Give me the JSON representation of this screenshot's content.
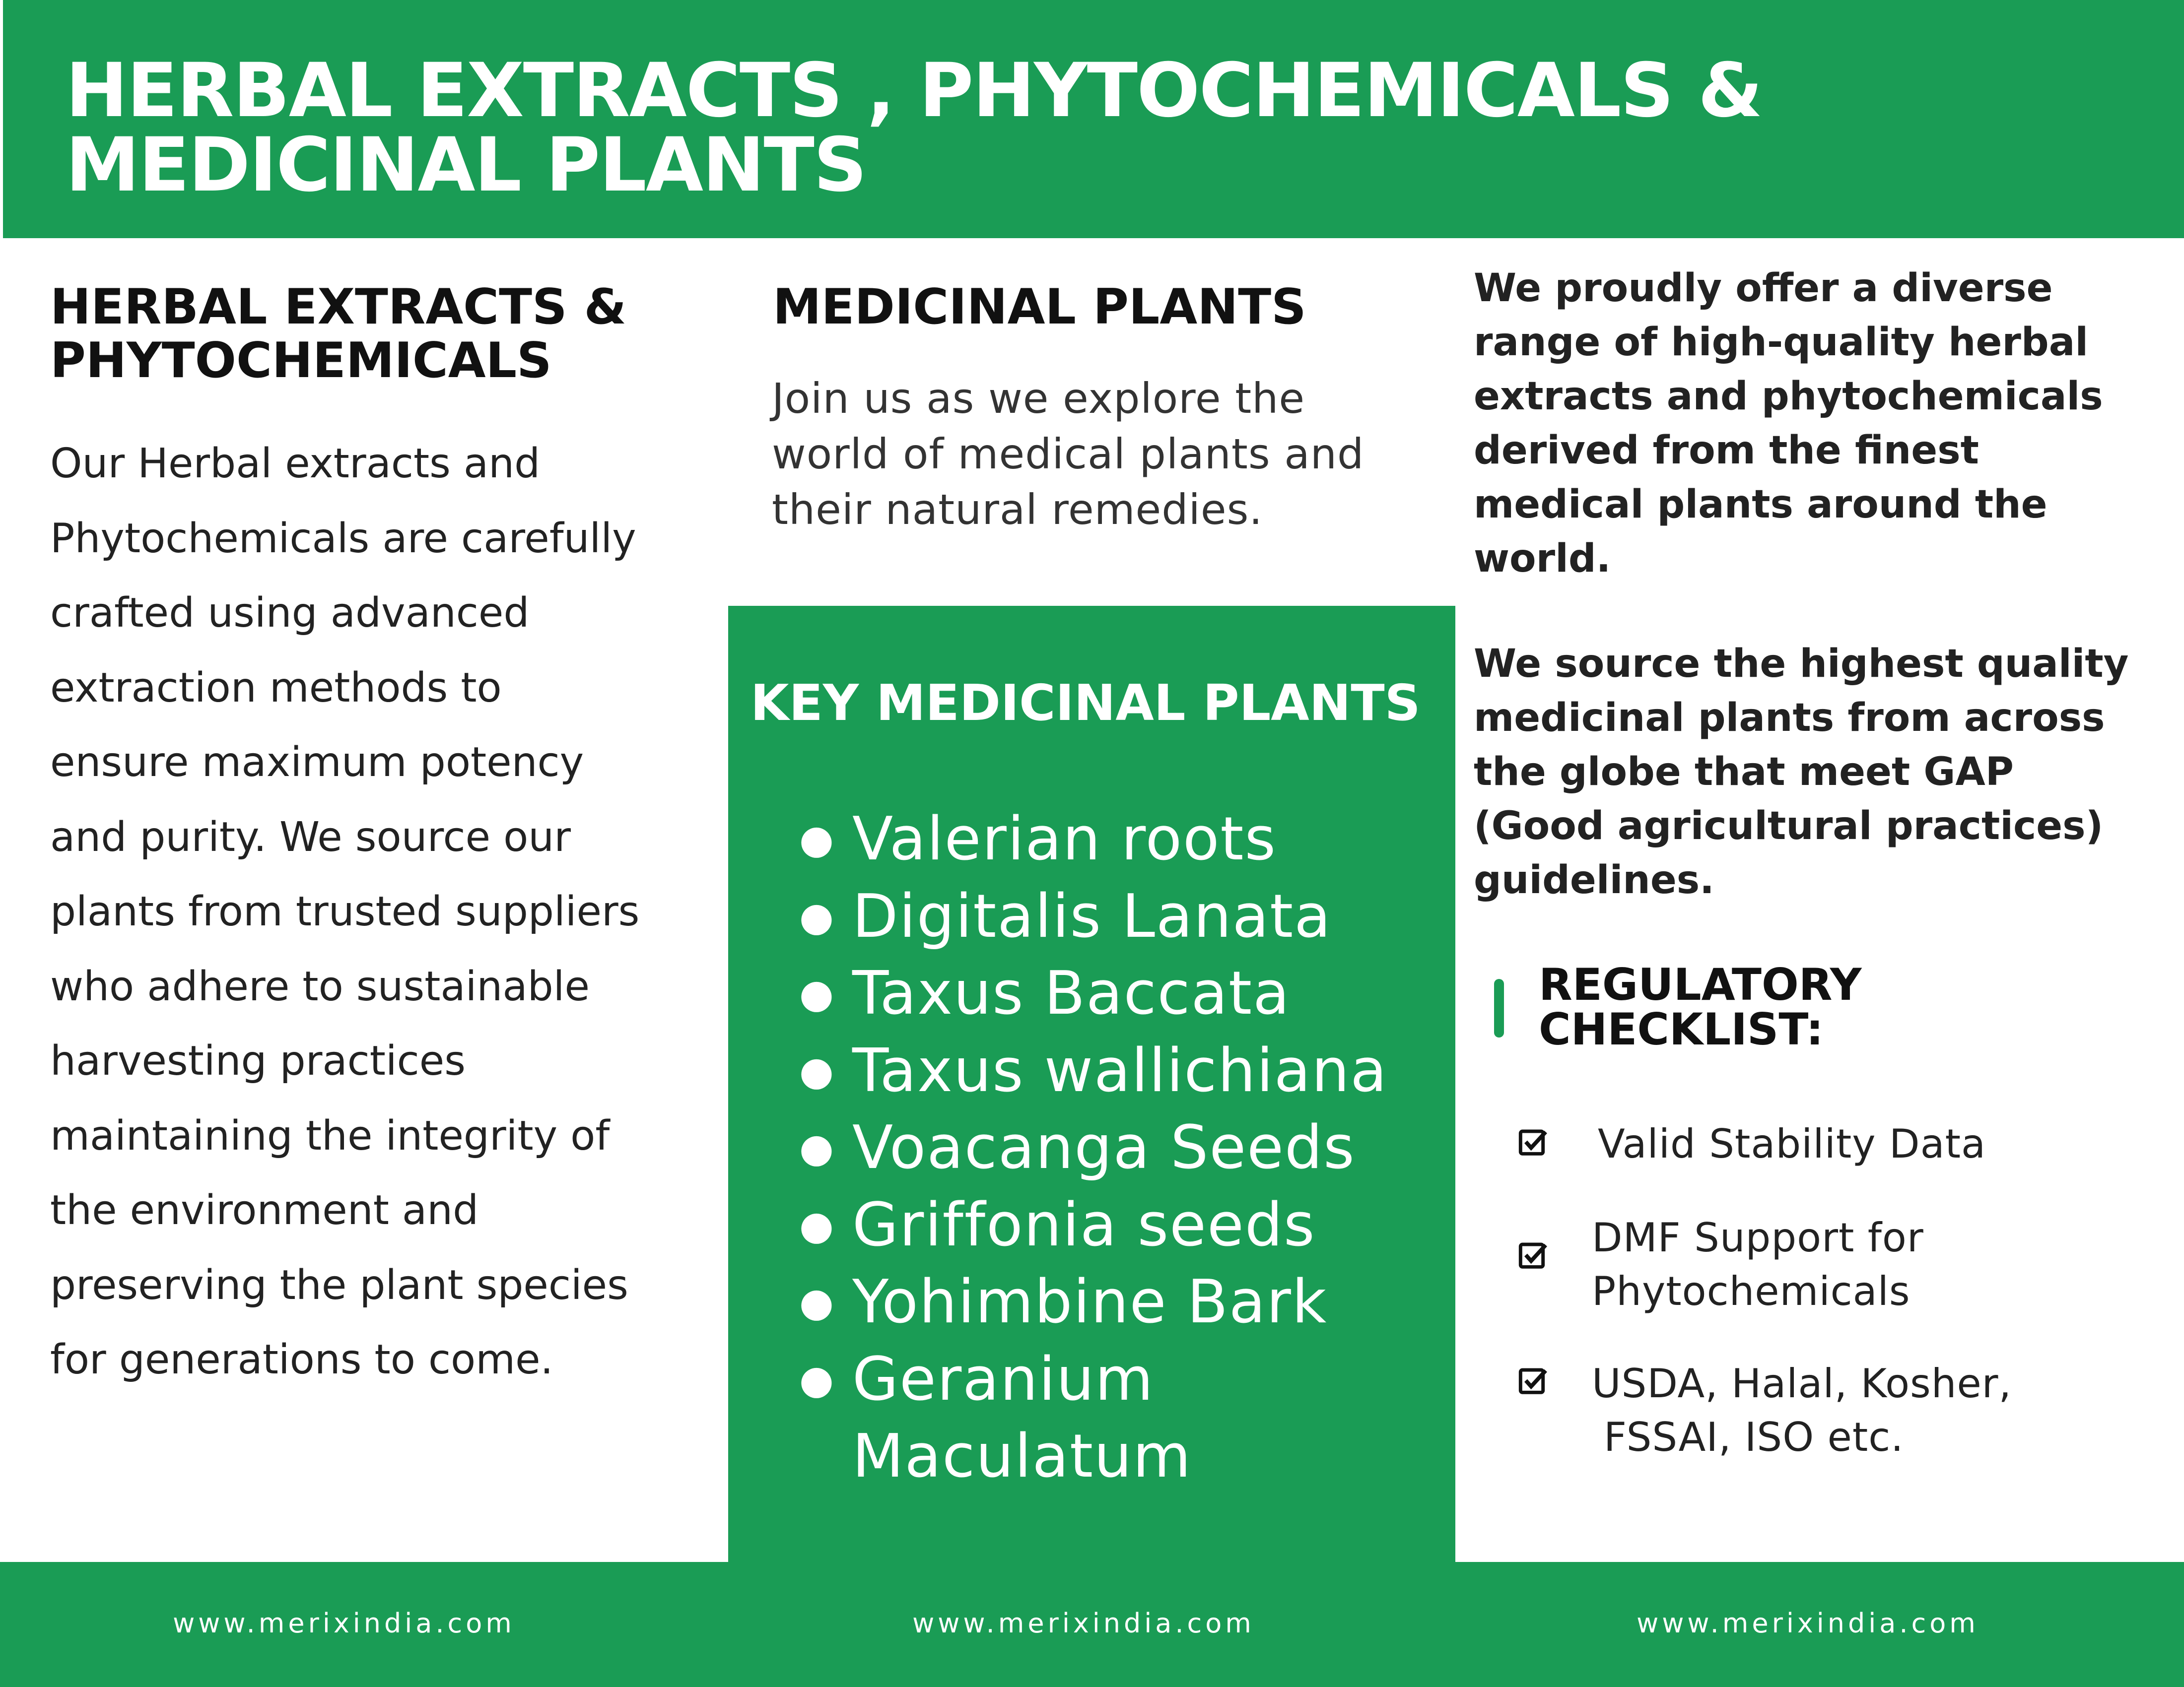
{
  "header": {
    "title_lines": [
      "HERBAL EXTRACTS , PHYTOCHEMICALS &",
      "MEDICINAL PLANTS"
    ]
  },
  "col1": {
    "heading_lines": [
      "HERBAL EXTRACTS &",
      "PHYTOCHEMICALS"
    ],
    "body_lines": [
      "Our Herbal extracts and",
      "Phytochemicals are carefully",
      "crafted using advanced",
      "extraction methods to",
      "ensure maximum potency",
      "and purity. We source our",
      "plants from trusted suppliers",
      "who adhere to sustainable",
      "harvesting practices",
      "maintaining the integrity of",
      "the environment and",
      "preserving the plant species",
      "for generations to come."
    ]
  },
  "col2": {
    "heading": "MEDICINAL PLANTS",
    "body_lines": [
      "Join us as we explore the",
      "world of medical plants and",
      "their natural remedies."
    ],
    "key_heading": "KEY MEDICINAL PLANTS",
    "plants": [
      [
        "Valerian roots"
      ],
      [
        "Digitalis Lanata"
      ],
      [
        "Taxus Baccata"
      ],
      [
        "Taxus wallichiana"
      ],
      [
        "Voacanga Seeds"
      ],
      [
        "Griffonia seeds"
      ],
      [
        "Yohimbine Bark"
      ],
      [
        "Geranium",
        "Maculatum"
      ]
    ]
  },
  "col3": {
    "para1_lines": [
      "We proudly offer a diverse",
      "range of high-quality herbal",
      "extracts and phytochemicals",
      "derived from the finest",
      "medical plants around the",
      "world."
    ],
    "para2_lines": [
      "We source the highest quality",
      "medicinal plants from across",
      "the globe that meet GAP",
      "(Good agricultural practices)",
      "guidelines."
    ],
    "checklist_heading_lines": [
      "REGULATORY",
      "CHECKLIST:"
    ],
    "checklist": [
      [
        "Valid Stability Data"
      ],
      [
        "DMF Support for",
        "Phytochemicals"
      ],
      [
        "USDA, Halal, Kosher,",
        " FSSAI, ISO etc."
      ]
    ]
  },
  "footer": {
    "urls": [
      "www.merixindia.com",
      "www.merixindia.com",
      "www.merixindia.com"
    ]
  },
  "colors": {
    "brand_green": "#1a9c55",
    "text": "#1d1d1f"
  },
  "icons": {
    "checklist": "checkbox-checked-icon",
    "list": "bullet-icon"
  }
}
